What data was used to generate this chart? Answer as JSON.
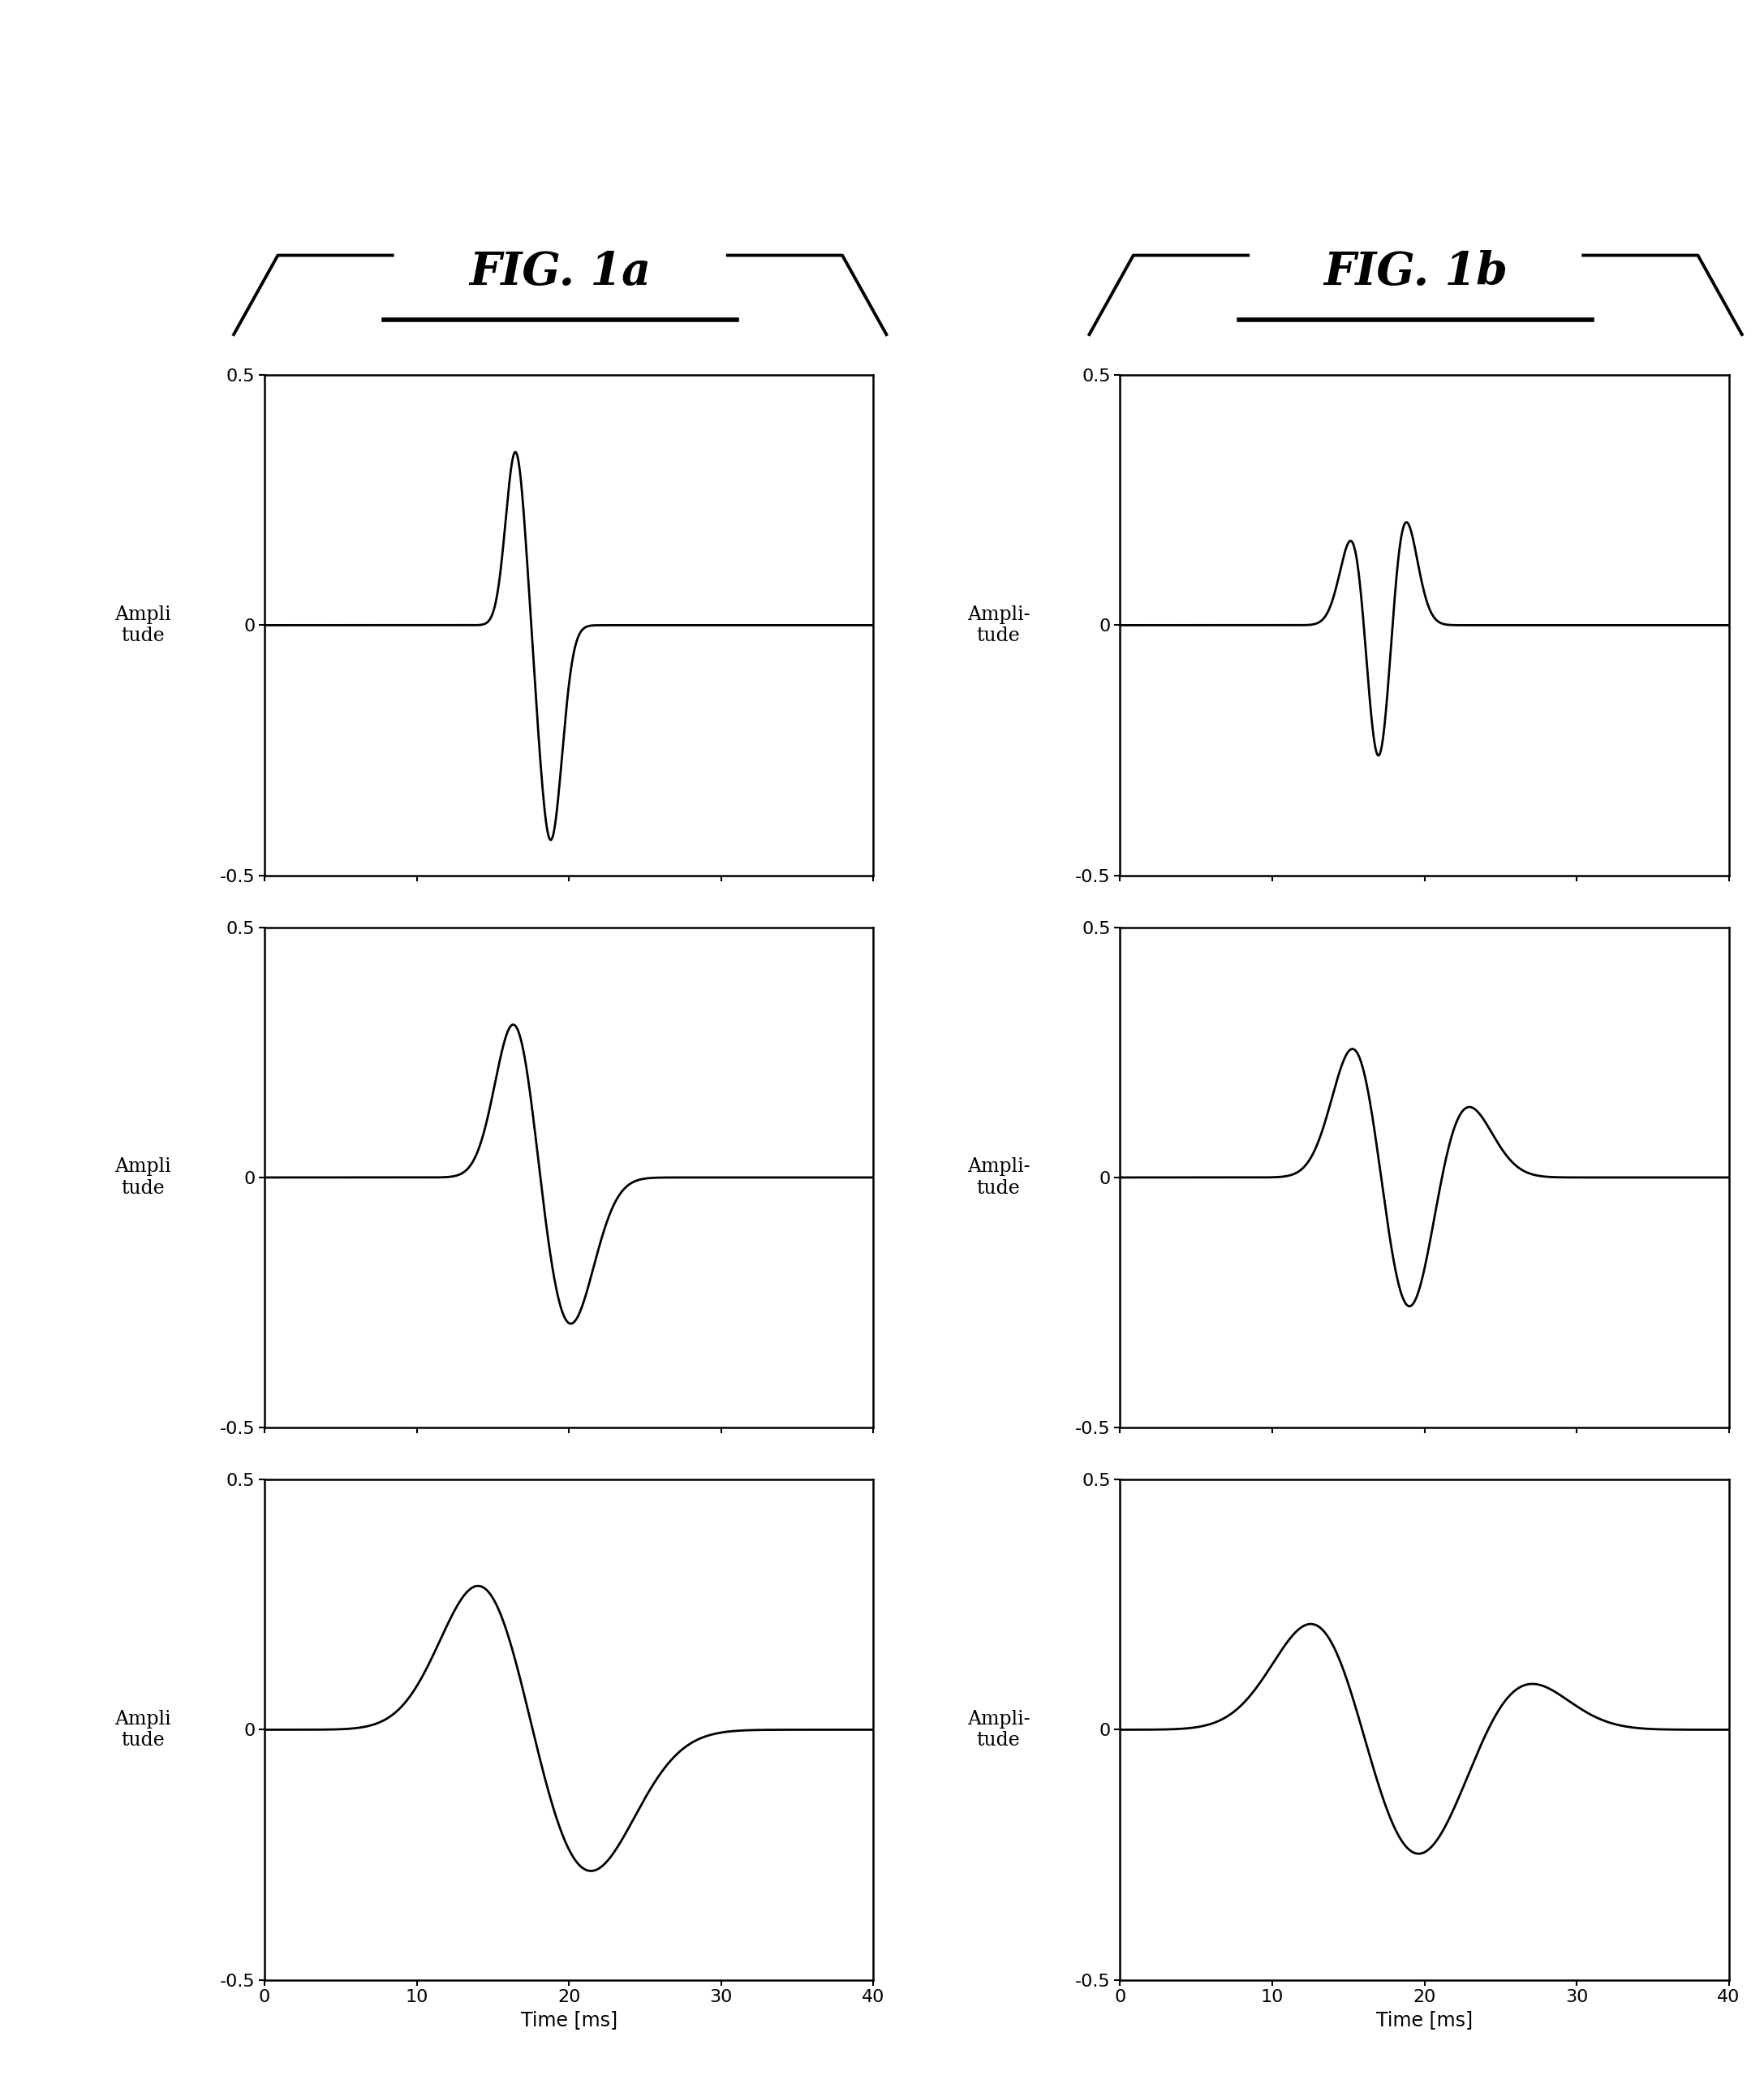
{
  "fig1a_title": "FIG. 1a",
  "fig1b_title": "FIG. 1b",
  "xlim": [
    0,
    40
  ],
  "ylim": [
    -0.5,
    0.5
  ],
  "yticks": [
    -0.5,
    0,
    0.5
  ],
  "xticks": [
    0,
    10,
    20,
    30,
    40
  ],
  "xlabel": "Time [ms]",
  "ylabel_left": "Ampli\ntude",
  "ylabel_right": "Ampli-\ntude",
  "background_color": "#ffffff",
  "line_color": "#000000",
  "line_width": 2.0
}
